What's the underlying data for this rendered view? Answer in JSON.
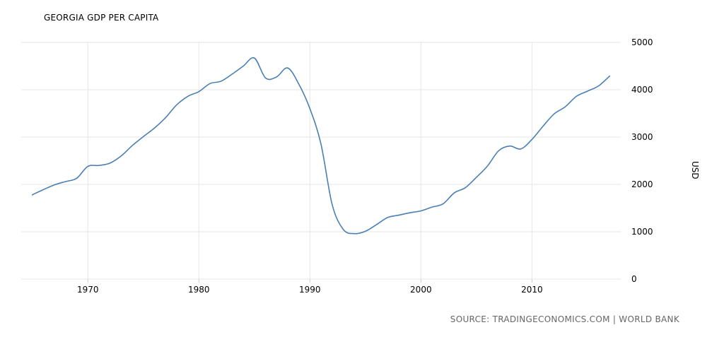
{
  "chart_data": {
    "type": "line",
    "title": "GEORGIA GDP PER CAPITA",
    "ylabel": "USD",
    "xlabel": "",
    "source": "SOURCE: TRADINGECONOMICS.COM | WORLD BANK",
    "xlim": [
      1964,
      2018
    ],
    "ylim": [
      0,
      5000
    ],
    "x_ticks": [
      1970,
      1980,
      1990,
      2000,
      2010
    ],
    "y_ticks": [
      0,
      1000,
      2000,
      3000,
      4000,
      5000
    ],
    "grid": true,
    "line_color": "#4a7fb5",
    "series": [
      {
        "x": [
          1965,
          1966,
          1967,
          1968,
          1969,
          1970,
          1971,
          1972,
          1973,
          1974,
          1975,
          1976,
          1977,
          1978,
          1979,
          1980,
          1981,
          1982,
          1983,
          1984,
          1985,
          1986,
          1987,
          1988,
          1989,
          1990,
          1991,
          1992,
          1993,
          1994,
          1995,
          1996,
          1997,
          1998,
          1999,
          2000,
          2001,
          2002,
          2003,
          2004,
          2005,
          2006,
          2007,
          2008,
          2009,
          2010,
          2011,
          2012,
          2013,
          2014,
          2015,
          2016,
          2017
        ],
        "values": [
          1780,
          1890,
          1990,
          2060,
          2130,
          2380,
          2400,
          2450,
          2600,
          2820,
          3010,
          3190,
          3410,
          3680,
          3860,
          3960,
          4130,
          4180,
          4330,
          4500,
          4670,
          4250,
          4270,
          4460,
          4120,
          3600,
          2850,
          1580,
          1050,
          960,
          1010,
          1150,
          1300,
          1350,
          1400,
          1440,
          1520,
          1590,
          1820,
          1930,
          2150,
          2390,
          2710,
          2810,
          2750,
          2950,
          3230,
          3490,
          3640,
          3860,
          3970,
          4080,
          4290
        ]
      }
    ]
  }
}
